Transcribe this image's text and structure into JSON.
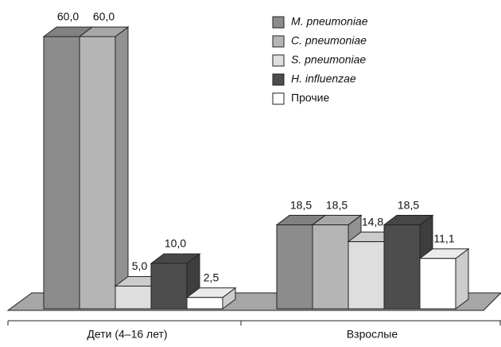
{
  "chart_data": {
    "type": "bar3d",
    "categories": [
      "Дети (4–16 лет)",
      "Взрослые"
    ],
    "series": [
      {
        "name": "M. pneumoniae",
        "color": "#8c8c8c",
        "values": [
          60.0,
          18.5
        ],
        "value_labels": [
          "60,0",
          "18,5"
        ]
      },
      {
        "name": "C. pneumoniae",
        "color": "#b5b5b5",
        "values": [
          60.0,
          18.5
        ],
        "value_labels": [
          "60,0",
          "18,5"
        ]
      },
      {
        "name": "S. pneumoniae",
        "color": "#dedede",
        "values": [
          5.0,
          14.8
        ],
        "value_labels": [
          "5,0",
          "14,8"
        ]
      },
      {
        "name": "H. influenzae",
        "color": "#4d4d4d",
        "values": [
          10.0,
          18.5
        ],
        "value_labels": [
          "10,0",
          "18,5"
        ]
      },
      {
        "name": "Прочие",
        "color": "#ffffff",
        "values": [
          2.5,
          11.1
        ],
        "value_labels": [
          "2,5",
          "11,1"
        ]
      }
    ]
  }
}
